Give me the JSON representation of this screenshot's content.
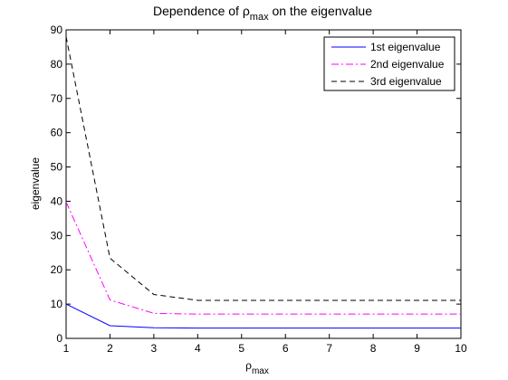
{
  "chart_data": {
    "type": "line",
    "title": {
      "prefix": "Dependence of ",
      "symbol": "ρ",
      "subscript": "max",
      "suffix": " on the eigenvalue"
    },
    "xlabel": {
      "symbol": "ρ",
      "subscript": "max"
    },
    "ylabel": "eigenvalue",
    "xlim": [
      1,
      10
    ],
    "ylim": [
      0,
      90
    ],
    "xticks": [
      1,
      2,
      3,
      4,
      5,
      6,
      7,
      8,
      9,
      10
    ],
    "yticks": [
      0,
      10,
      20,
      30,
      40,
      50,
      60,
      70,
      80,
      90
    ],
    "grid": false,
    "legend_position": "top-right",
    "x": [
      1,
      2,
      3,
      4,
      5,
      6,
      7,
      8,
      9,
      10
    ],
    "series": [
      {
        "name": "1st eigenvalue",
        "color": "#0000ff",
        "style": "solid",
        "values": [
          10.0,
          3.7,
          3.1,
          3.0,
          3.0,
          3.0,
          3.0,
          3.0,
          3.0,
          3.0
        ]
      },
      {
        "name": "2nd eigenvalue",
        "color": "#ff00ff",
        "style": "dashdot",
        "values": [
          39.8,
          11.2,
          7.3,
          7.1,
          7.1,
          7.1,
          7.1,
          7.1,
          7.1,
          7.1
        ]
      },
      {
        "name": "3rd eigenvalue",
        "color": "#000000",
        "style": "dashed",
        "values": [
          88.0,
          23.4,
          12.8,
          11.1,
          11.1,
          11.1,
          11.1,
          11.1,
          11.1,
          11.1
        ]
      }
    ]
  }
}
